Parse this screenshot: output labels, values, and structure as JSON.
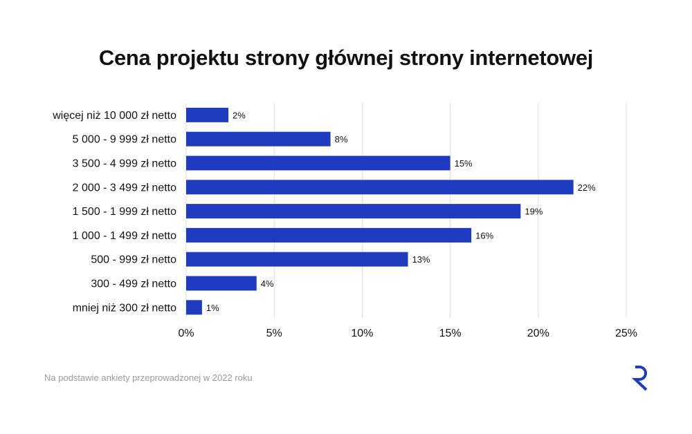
{
  "chart_data": {
    "type": "bar",
    "orientation": "horizontal",
    "title": "Cena projektu strony głównej strony internetowej",
    "categories": [
      "więcej niż 10 000 zł netto",
      "5 000 - 9 999 zł netto",
      "3 500 - 4 999 zł netto",
      "2 000 - 3 499 zł netto",
      "1 500 - 1 999 zł netto",
      "1 000 - 1 499 zł netto",
      "500 - 999 zł netto",
      "300 - 499 zł netto",
      "mniej niż 300 zł netto"
    ],
    "values": [
      2.4,
      8.2,
      15,
      22,
      19,
      16.2,
      12.6,
      4,
      0.9
    ],
    "value_labels": [
      "2%",
      "8%",
      "15%",
      "22%",
      "19%",
      "16%",
      "13%",
      "4%",
      "1%"
    ],
    "xlim": [
      0,
      25
    ],
    "xticks": [
      0,
      5,
      10,
      15,
      20,
      25
    ],
    "xtick_labels": [
      "0%",
      "5%",
      "10%",
      "15%",
      "20%",
      "25%"
    ],
    "xlabel": "",
    "ylabel": "",
    "grid": "vertical",
    "bar_color": "#1f3bbf",
    "grid_color": "#dddddd"
  },
  "footnote": "Na podstawie ankiety przeprowadzonej w 2022 roku",
  "brand": {
    "icon": "brand-r-logo-icon",
    "color": "#1f3bbf"
  }
}
